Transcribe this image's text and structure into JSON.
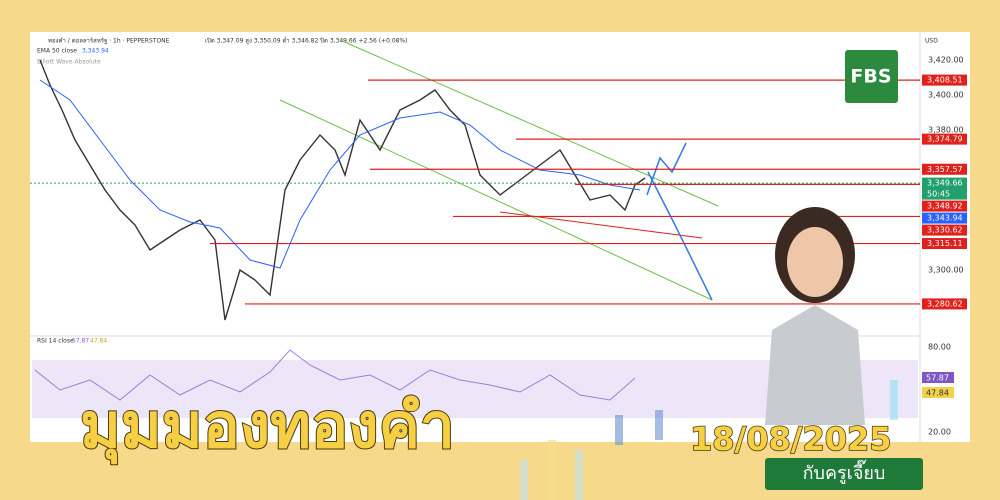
{
  "header": {
    "symbol": "ทองคำ / ดอลลาร์สหรัฐ · 1h · PEPPERSTONE",
    "ohlc": "เปิด 3,347.09 สูง 3,350.09 ต่ำ 3,346.82 ปิด 3,349.66 +2.56 (+0.08%)",
    "ema": "EMA 50 close",
    "ema_value": "3,343.94",
    "indicator": "Elliott Wave Absolute"
  },
  "price_axis": {
    "currency": "USD",
    "ticks": [
      {
        "value": 3420,
        "label": "3,420.00"
      },
      {
        "value": 3400,
        "label": "3,400.00"
      },
      {
        "value": 3380,
        "label": "3,380.00"
      },
      {
        "value": 3300,
        "label": "3,300.00"
      }
    ]
  },
  "levels": [
    {
      "value": 3408.51,
      "label": "3,408.51",
      "color": "#e0201b"
    },
    {
      "value": 3374.79,
      "label": "3,374.79",
      "color": "#e0201b"
    },
    {
      "value": 3357.57,
      "label": "3,357.57",
      "color": "#e0201b"
    },
    {
      "value": 3349.66,
      "label": "3,349.66",
      "color": "#22a06b",
      "countdown": "50:45"
    },
    {
      "value": 3348.92,
      "label": "3,348.92",
      "color": "#e0201b"
    },
    {
      "value": 3343.94,
      "label": "3,343.94",
      "color": "#2962ff"
    },
    {
      "value": 3330.62,
      "label": "3,330.62",
      "color": "#e0201b"
    },
    {
      "value": 3315.11,
      "label": "3,315.11",
      "color": "#e0201b"
    },
    {
      "value": 3280.62,
      "label": "3,280.62",
      "color": "#e0201b"
    }
  ],
  "rsi": {
    "label": "RSI 14 close",
    "value1": "57.87",
    "value2": "47.84",
    "ticks": [
      "80.00",
      "20.00"
    ]
  },
  "brand": "FBS",
  "title": "มุมมองทองคำ",
  "date": "18/08/2025",
  "subtitle": "กับครูเจี๊ยบ"
}
